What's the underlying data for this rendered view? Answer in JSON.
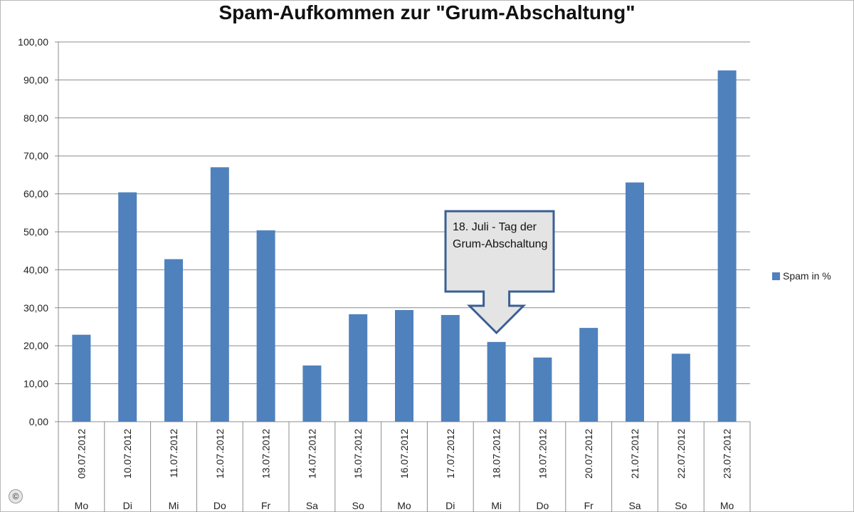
{
  "chart_data": {
    "type": "bar",
    "title": "Spam-Aufkommen zur \"Grum-Abschaltung\"",
    "xlabel": "",
    "ylabel": "",
    "ylim": [
      0,
      100
    ],
    "y_ticks": [
      "0,00",
      "10,00",
      "20,00",
      "30,00",
      "40,00",
      "50,00",
      "60,00",
      "70,00",
      "80,00",
      "90,00",
      "100,00"
    ],
    "categories": [
      "09.07.2012",
      "10.07.2012",
      "11.07.2012",
      "12.07.2012",
      "13.07.2012",
      "14.07.2012",
      "15.07.2012",
      "16.07.2012",
      "17.07.2012",
      "18.07.2012",
      "19.07.2012",
      "20.07.2012",
      "21.07.2012",
      "22.07.2012",
      "23.07.2012"
    ],
    "weekdays": [
      "Mo",
      "Di",
      "Mi",
      "Do",
      "Fr",
      "Sa",
      "So",
      "Mo",
      "Di",
      "Mi",
      "Do",
      "Fr",
      "Sa",
      "So",
      "Mo"
    ],
    "series": [
      {
        "name": "Spam in %",
        "color": "#4f81bd",
        "values": [
          22.9,
          60.4,
          42.8,
          67.0,
          50.4,
          14.8,
          28.3,
          29.4,
          28.1,
          21.0,
          16.9,
          24.7,
          63.0,
          17.9,
          92.5
        ]
      }
    ],
    "grid": true,
    "legend": "right",
    "annotation": {
      "text": "18. Juli - Tag der Grum-Abschaltung",
      "target_category": "18.07.2012"
    }
  },
  "copyright_icon": "copyright-icon",
  "copyright_symbol": "©"
}
